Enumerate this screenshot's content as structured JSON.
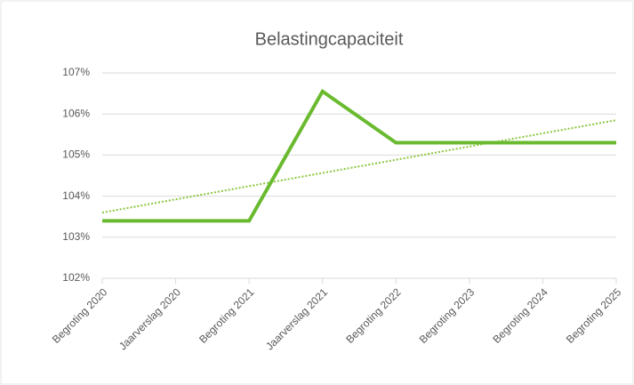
{
  "chart_data": {
    "type": "line",
    "title": "Belastingcapaciteit",
    "categories": [
      "Begroting 2020",
      "Jaarverslag 2020",
      "Begroting 2021",
      "Jaarverslag 2021",
      "Begroting 2022",
      "Begroting 2023",
      "Begroting 2024",
      "Begroting 2025"
    ],
    "series": [
      {
        "name": "Belastingcapaciteit",
        "color": "#6aba2f",
        "values": [
          103.4,
          103.4,
          103.4,
          106.55,
          105.3,
          105.3,
          105.3,
          105.3
        ]
      }
    ],
    "trendline": {
      "color": "#8cc63f",
      "start": 103.6,
      "end": 105.85
    },
    "ylim": [
      102,
      107
    ],
    "yticks": [
      {
        "value": 102,
        "label": "102%"
      },
      {
        "value": 103,
        "label": "103%"
      },
      {
        "value": 104,
        "label": "104%"
      },
      {
        "value": 105,
        "label": "105%"
      },
      {
        "value": 106,
        "label": "106%"
      },
      {
        "value": 107,
        "label": "107%"
      }
    ],
    "grid": true
  }
}
